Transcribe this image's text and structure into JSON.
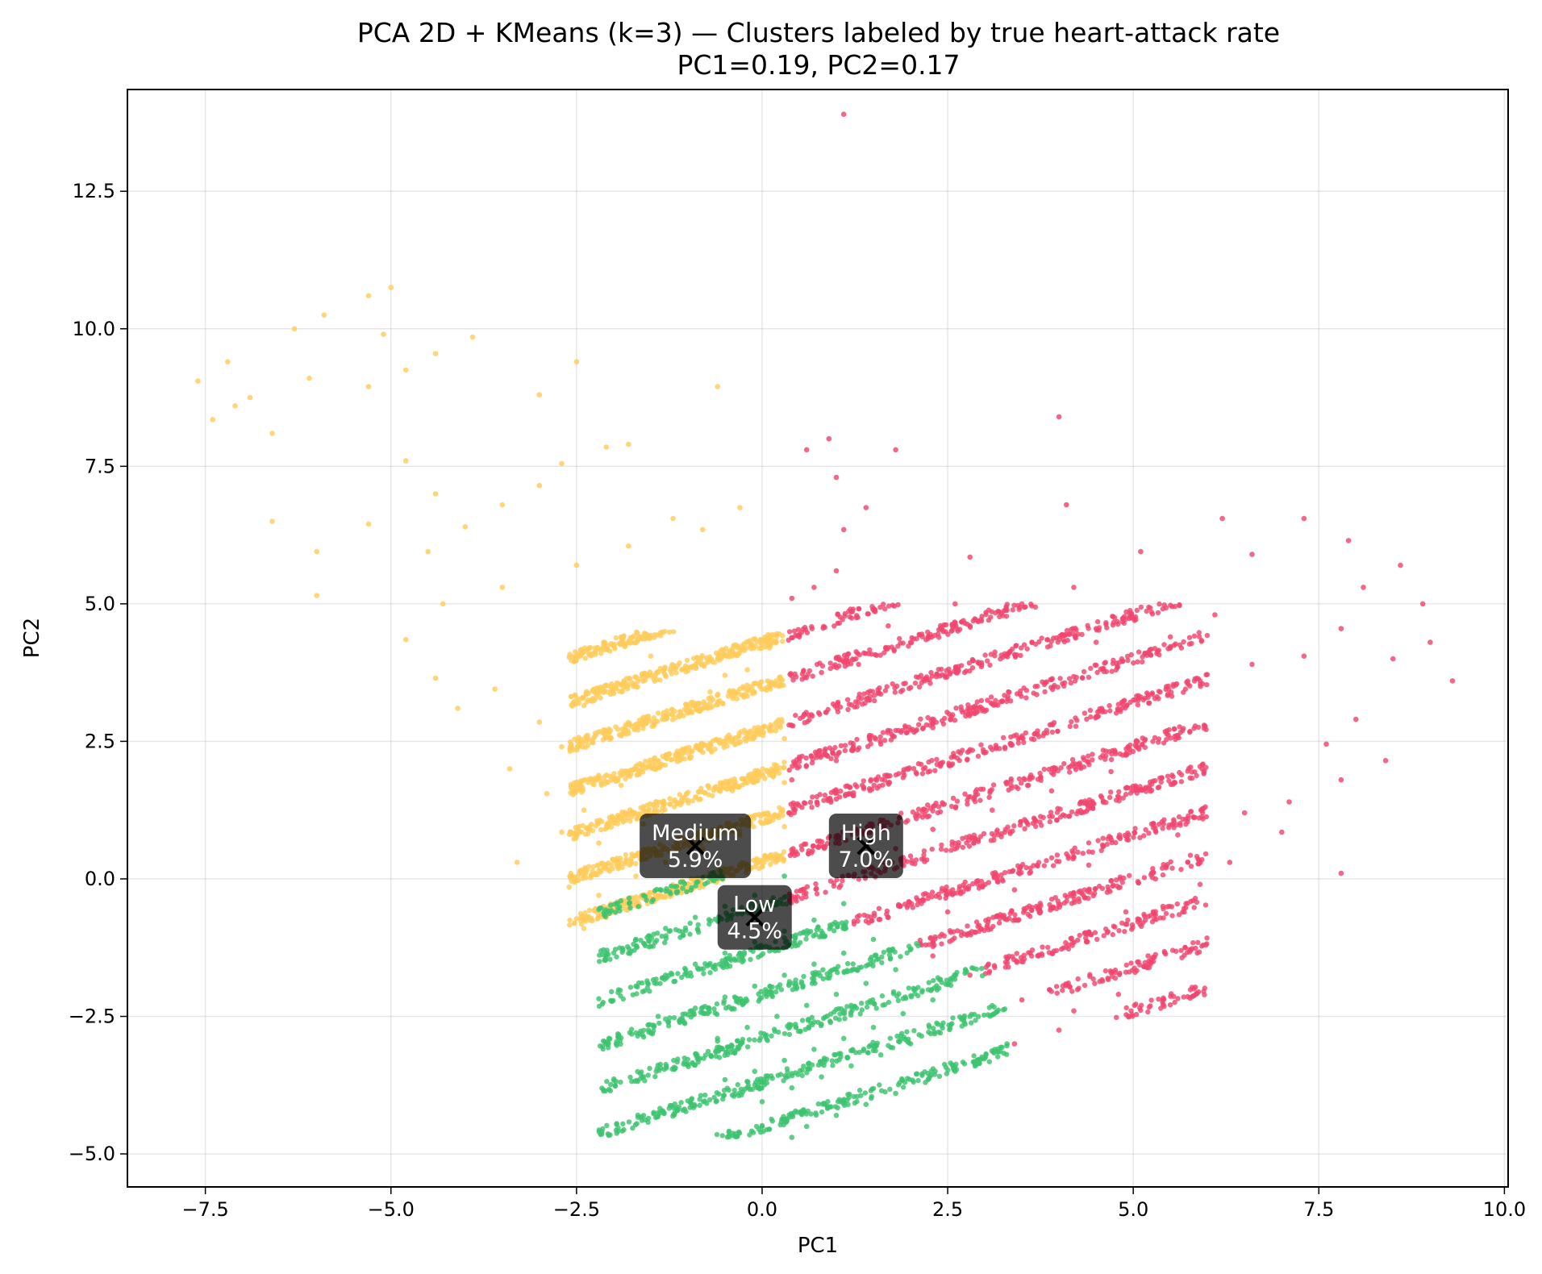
{
  "chart_data": {
    "type": "scatter",
    "title": "PCA 2D + KMeans (k=3) — Clusters labeled by true heart-attack rate",
    "subtitle": "PC1=0.19, PC2=0.17",
    "xlabel": "PC1",
    "ylabel": "PC2",
    "xlim": [
      -8.55,
      10.05
    ],
    "ylim": [
      -5.6,
      14.35
    ],
    "xticks": [
      -7.5,
      -5.0,
      -2.5,
      0.0,
      2.5,
      5.0,
      7.5,
      10.0
    ],
    "xtick_labels": [
      "−7.5",
      "−5.0",
      "−2.5",
      "0.0",
      "2.5",
      "5.0",
      "7.5",
      "10.0"
    ],
    "yticks": [
      -5.0,
      -2.5,
      0.0,
      2.5,
      5.0,
      7.5,
      10.0,
      12.5
    ],
    "ytick_labels": [
      "−5.0",
      "−2.5",
      "0.0",
      "2.5",
      "5.0",
      "7.5",
      "10.0",
      "12.5"
    ],
    "grid": true,
    "line_structure": {
      "slope": 0.42,
      "y_intercepts": [
        -4.5,
        -3.7,
        -2.9,
        -2.1,
        -1.3,
        -0.5,
        0.3,
        1.1,
        1.9,
        2.7,
        3.5,
        4.3,
        5.1,
        5.9,
        6.7,
        7.5,
        8.3,
        9.1,
        9.9
      ]
    },
    "series": [
      {
        "cluster": "Medium",
        "color": "#FFCC5C",
        "dense_region": {
          "x": [
            -2.6,
            0.3
          ],
          "y": [
            -1.0,
            4.5
          ]
        },
        "sparse_region": {
          "x": [
            -7.7,
            0.3
          ],
          "y": [
            0.3,
            10.8
          ]
        },
        "points": [
          [
            -7.6,
            9.05
          ],
          [
            -7.4,
            8.35
          ],
          [
            -7.2,
            9.4
          ],
          [
            -7.1,
            8.6
          ],
          [
            -6.9,
            8.75
          ],
          [
            -6.6,
            8.1
          ],
          [
            -6.3,
            10.0
          ],
          [
            -6.1,
            9.1
          ],
          [
            -5.9,
            10.25
          ],
          [
            -5.3,
            10.6
          ],
          [
            -5.0,
            10.75
          ],
          [
            -5.1,
            9.9
          ],
          [
            -4.8,
            9.25
          ],
          [
            -4.4,
            9.55
          ],
          [
            -3.9,
            9.85
          ],
          [
            -5.3,
            8.95
          ],
          [
            -4.8,
            7.6
          ],
          [
            -4.4,
            7.0
          ],
          [
            -4.0,
            6.4
          ],
          [
            -3.5,
            6.8
          ],
          [
            -3.0,
            7.15
          ],
          [
            -2.7,
            7.55
          ],
          [
            -6.6,
            6.5
          ],
          [
            -6.0,
            5.95
          ],
          [
            -6.0,
            5.15
          ],
          [
            -5.3,
            6.45
          ],
          [
            -4.5,
            5.95
          ],
          [
            -4.8,
            4.35
          ],
          [
            -4.3,
            5.0
          ],
          [
            -3.5,
            5.3
          ],
          [
            -2.5,
            5.7
          ],
          [
            -1.8,
            6.05
          ],
          [
            -1.2,
            6.55
          ],
          [
            -0.8,
            6.35
          ],
          [
            -0.3,
            6.75
          ],
          [
            -2.1,
            7.85
          ],
          [
            -1.8,
            7.9
          ],
          [
            -0.6,
            8.95
          ],
          [
            -2.5,
            9.4
          ],
          [
            -3.0,
            8.8
          ],
          [
            -4.4,
            3.65
          ],
          [
            -4.1,
            3.1
          ],
          [
            -3.6,
            3.45
          ],
          [
            -3.0,
            2.85
          ],
          [
            -2.7,
            2.4
          ],
          [
            -2.4,
            3.15
          ],
          [
            -1.9,
            2.6
          ],
          [
            -1.3,
            2.95
          ],
          [
            -0.7,
            3.4
          ],
          [
            -3.4,
            2.0
          ],
          [
            -2.9,
            1.55
          ],
          [
            -2.4,
            1.25
          ],
          [
            -1.9,
            1.7
          ],
          [
            -1.4,
            2.15
          ],
          [
            -0.7,
            2.45
          ],
          [
            -2.7,
            0.85
          ],
          [
            -2.2,
            0.65
          ],
          [
            -1.6,
            1.0
          ],
          [
            -1.1,
            1.35
          ],
          [
            -0.4,
            1.6
          ],
          [
            -3.3,
            0.3
          ],
          [
            -2.6,
            -0.15
          ],
          [
            -2.2,
            -0.3
          ],
          [
            -1.7,
            0.05
          ],
          [
            -1.3,
            0.3
          ],
          [
            -0.8,
            0.55
          ],
          [
            -0.3,
            0.8
          ],
          [
            -2.4,
            -0.9
          ],
          [
            -2.1,
            -0.7
          ],
          [
            -1.8,
            -0.55
          ],
          [
            -1.5,
            -0.35
          ],
          [
            -1.2,
            -0.2
          ],
          [
            -0.9,
            0.0
          ],
          [
            0.1,
            4.2
          ],
          [
            0.3,
            2.55
          ],
          [
            0.3,
            1.75
          ],
          [
            0.3,
            0.95
          ],
          [
            -0.2,
            3.8
          ],
          [
            -0.5,
            3.7
          ],
          [
            -1.5,
            4.05
          ]
        ]
      },
      {
        "cluster": "High",
        "color": "#F0466E",
        "dense_region": {
          "x": [
            0.3,
            6.0
          ],
          "y": [
            -3.0,
            5.0
          ]
        },
        "sparse_region": {
          "x": [
            0.3,
            9.3
          ],
          "y": [
            -2.3,
            8.4
          ]
        },
        "points": [
          [
            1.1,
            13.9
          ],
          [
            0.6,
            7.8
          ],
          [
            0.9,
            8.0
          ],
          [
            1.0,
            7.3
          ],
          [
            1.8,
            7.8
          ],
          [
            1.4,
            6.75
          ],
          [
            1.1,
            6.35
          ],
          [
            4.0,
            8.4
          ],
          [
            4.1,
            6.8
          ],
          [
            0.4,
            5.1
          ],
          [
            0.7,
            5.3
          ],
          [
            1.0,
            5.6
          ],
          [
            2.8,
            5.85
          ],
          [
            2.6,
            5.0
          ],
          [
            1.7,
            4.6
          ],
          [
            0.5,
            4.4
          ],
          [
            0.8,
            3.75
          ],
          [
            1.3,
            3.9
          ],
          [
            2.0,
            4.3
          ],
          [
            2.8,
            4.6
          ],
          [
            3.5,
            5.0
          ],
          [
            4.2,
            5.3
          ],
          [
            5.1,
            5.95
          ],
          [
            6.2,
            6.55
          ],
          [
            7.3,
            6.55
          ],
          [
            7.9,
            6.15
          ],
          [
            8.1,
            5.3
          ],
          [
            8.6,
            5.7
          ],
          [
            8.9,
            5.0
          ],
          [
            8.5,
            4.0
          ],
          [
            9.0,
            4.3
          ],
          [
            9.3,
            3.6
          ],
          [
            7.8,
            4.55
          ],
          [
            6.6,
            5.9
          ],
          [
            6.1,
            4.8
          ],
          [
            5.5,
            4.4
          ],
          [
            4.5,
            4.3
          ],
          [
            3.7,
            3.35
          ],
          [
            3.0,
            3.05
          ],
          [
            2.3,
            2.75
          ],
          [
            1.6,
            2.45
          ],
          [
            1.0,
            2.15
          ],
          [
            0.4,
            1.8
          ],
          [
            1.0,
            1.45
          ],
          [
            1.7,
            1.75
          ],
          [
            2.4,
            2.05
          ],
          [
            3.1,
            2.35
          ],
          [
            3.8,
            2.65
          ],
          [
            4.5,
            2.95
          ],
          [
            5.2,
            3.3
          ],
          [
            5.9,
            3.6
          ],
          [
            6.6,
            3.9
          ],
          [
            7.3,
            4.05
          ],
          [
            7.6,
            2.45
          ],
          [
            8.0,
            2.9
          ],
          [
            8.4,
            2.15
          ],
          [
            7.8,
            1.8
          ],
          [
            7.8,
            0.1
          ],
          [
            7.1,
            1.4
          ],
          [
            6.5,
            1.2
          ],
          [
            5.6,
            0.8
          ],
          [
            4.4,
            0.25
          ],
          [
            3.4,
            -0.2
          ],
          [
            2.5,
            -0.6
          ],
          [
            1.7,
            -0.7
          ],
          [
            2.3,
            -1.4
          ],
          [
            2.8,
            -1.75
          ],
          [
            3.5,
            -2.2
          ],
          [
            4.2,
            -2.4
          ],
          [
            4.8,
            -2.1
          ],
          [
            5.2,
            -1.4
          ],
          [
            5.4,
            -0.5
          ],
          [
            5.9,
            -0.1
          ],
          [
            6.3,
            0.3
          ],
          [
            7.0,
            0.85
          ],
          [
            4.9,
            -0.6
          ],
          [
            5.7,
            -1.25
          ],
          [
            3.4,
            -3.0
          ],
          [
            4.0,
            -2.75
          ],
          [
            1.8,
            0.55
          ],
          [
            2.3,
            0.9
          ],
          [
            3.1,
            1.25
          ],
          [
            3.9,
            1.6
          ],
          [
            4.7,
            1.95
          ],
          [
            5.3,
            0.0
          ]
        ]
      },
      {
        "cluster": "Low",
        "color": "#3CC36E",
        "dense_region": {
          "x": [
            -2.2,
            3.3
          ],
          "y": [
            -4.7,
            0.4
          ]
        },
        "sparse_region": {
          "x": [
            -1.8,
            3.3
          ],
          "y": [
            -4.7,
            0.4
          ]
        },
        "points": [
          [
            -2.1,
            -1.35
          ],
          [
            -1.7,
            -1.1
          ],
          [
            -1.3,
            -0.9
          ],
          [
            -0.9,
            -0.7
          ],
          [
            -0.5,
            -0.5
          ],
          [
            -0.1,
            -0.3
          ],
          [
            0.3,
            0.05
          ],
          [
            -1.7,
            -1.95
          ],
          [
            -1.3,
            -1.75
          ],
          [
            -0.9,
            -1.55
          ],
          [
            -0.5,
            -1.35
          ],
          [
            -0.1,
            -1.15
          ],
          [
            0.3,
            -0.95
          ],
          [
            0.7,
            -0.75
          ],
          [
            1.1,
            -0.45
          ],
          [
            -1.3,
            -2.55
          ],
          [
            -0.9,
            -2.35
          ],
          [
            -0.5,
            -2.15
          ],
          [
            -0.1,
            -1.95
          ],
          [
            0.3,
            -1.75
          ],
          [
            0.7,
            -1.55
          ],
          [
            1.1,
            -1.35
          ],
          [
            1.5,
            -1.1
          ],
          [
            -0.6,
            -2.9
          ],
          [
            -0.2,
            -2.7
          ],
          [
            0.2,
            -2.5
          ],
          [
            0.6,
            -2.3
          ],
          [
            1.0,
            -2.1
          ],
          [
            1.4,
            -1.9
          ],
          [
            1.8,
            -1.65
          ],
          [
            -0.1,
            -3.5
          ],
          [
            0.3,
            -3.3
          ],
          [
            0.7,
            -3.1
          ],
          [
            1.1,
            -2.9
          ],
          [
            1.5,
            -2.7
          ],
          [
            1.9,
            -2.45
          ],
          [
            2.3,
            -2.2
          ],
          [
            0.4,
            -3.8
          ],
          [
            0.8,
            -3.6
          ],
          [
            1.2,
            -3.4
          ],
          [
            1.6,
            -3.2
          ],
          [
            2.0,
            -3.0
          ],
          [
            2.4,
            -2.8
          ],
          [
            2.8,
            -2.5
          ],
          [
            0.6,
            -4.5
          ],
          [
            1.0,
            -4.3
          ],
          [
            1.4,
            -4.1
          ],
          [
            1.8,
            -3.9
          ],
          [
            2.2,
            -3.7
          ],
          [
            2.6,
            -3.5
          ],
          [
            3.0,
            -3.25
          ],
          [
            3.3,
            -3.0
          ],
          [
            0.4,
            -4.7
          ],
          [
            0.0,
            -4.05
          ],
          [
            -0.5,
            -3.65
          ],
          [
            -1.4,
            -2.5
          ],
          [
            -0.6,
            -2.95
          ]
        ]
      }
    ],
    "annotations": [
      {
        "label": "Medium",
        "rate": "5.9%",
        "centroid": [
          -0.9,
          0.6
        ]
      },
      {
        "label": "High",
        "rate": "7.0%",
        "centroid": [
          1.4,
          0.6
        ]
      },
      {
        "label": "Low",
        "rate": "4.5%",
        "centroid": [
          -0.1,
          -0.7
        ]
      }
    ]
  }
}
